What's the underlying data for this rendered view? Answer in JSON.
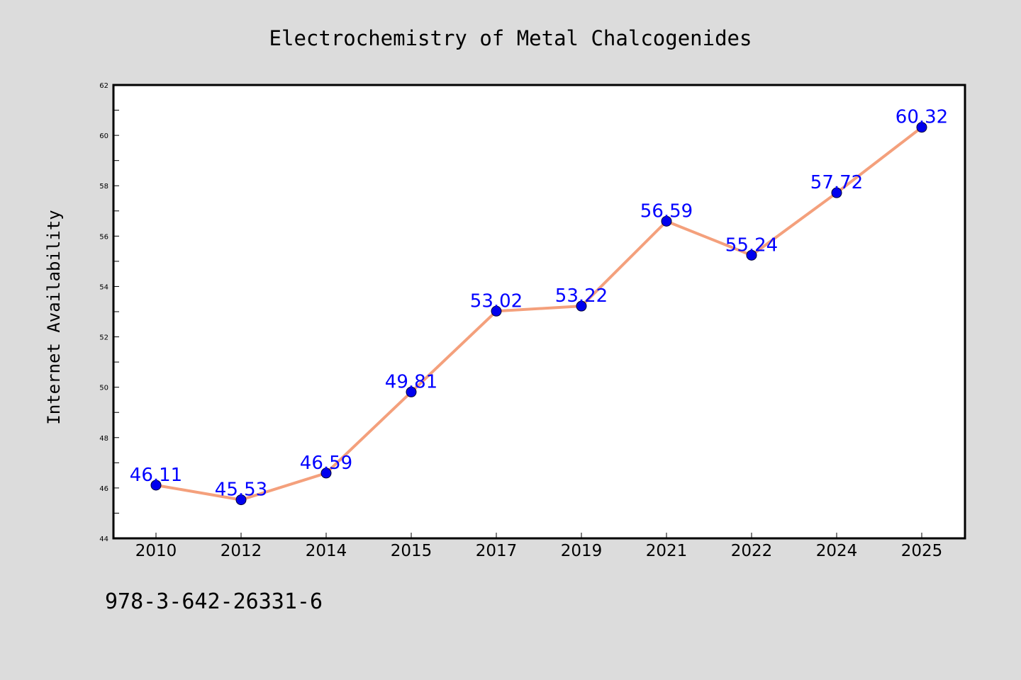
{
  "chart_data": {
    "type": "line",
    "title": "Electrochemistry of Metal Chalcogenides",
    "xlabel": "",
    "ylabel": "Internet Availability",
    "categories": [
      "2010",
      "2012",
      "2014",
      "2015",
      "2017",
      "2019",
      "2021",
      "2022",
      "2024",
      "2025"
    ],
    "series": [
      {
        "values": [
          46.11,
          45.53,
          46.59,
          49.81,
          53.02,
          53.22,
          56.59,
          55.24,
          57.72,
          60.32
        ]
      }
    ],
    "data_labels": [
      "46.11",
      "45.53",
      "46.59",
      "49.81",
      "53.02",
      "53.22",
      "56.59",
      "55.24",
      "57.72",
      "60.32"
    ],
    "ylim": [
      44,
      62
    ],
    "yticks": [
      44,
      46,
      48,
      50,
      52,
      54,
      56,
      58,
      60,
      62
    ],
    "grid": false,
    "colors": {
      "line": "#f4a07c",
      "marker": "#0000ee",
      "data_label": "#0000ff",
      "background": "#dcdcdc",
      "plot_area": "#ffffff"
    }
  },
  "footer": {
    "code": "978-3-642-26331-6"
  }
}
